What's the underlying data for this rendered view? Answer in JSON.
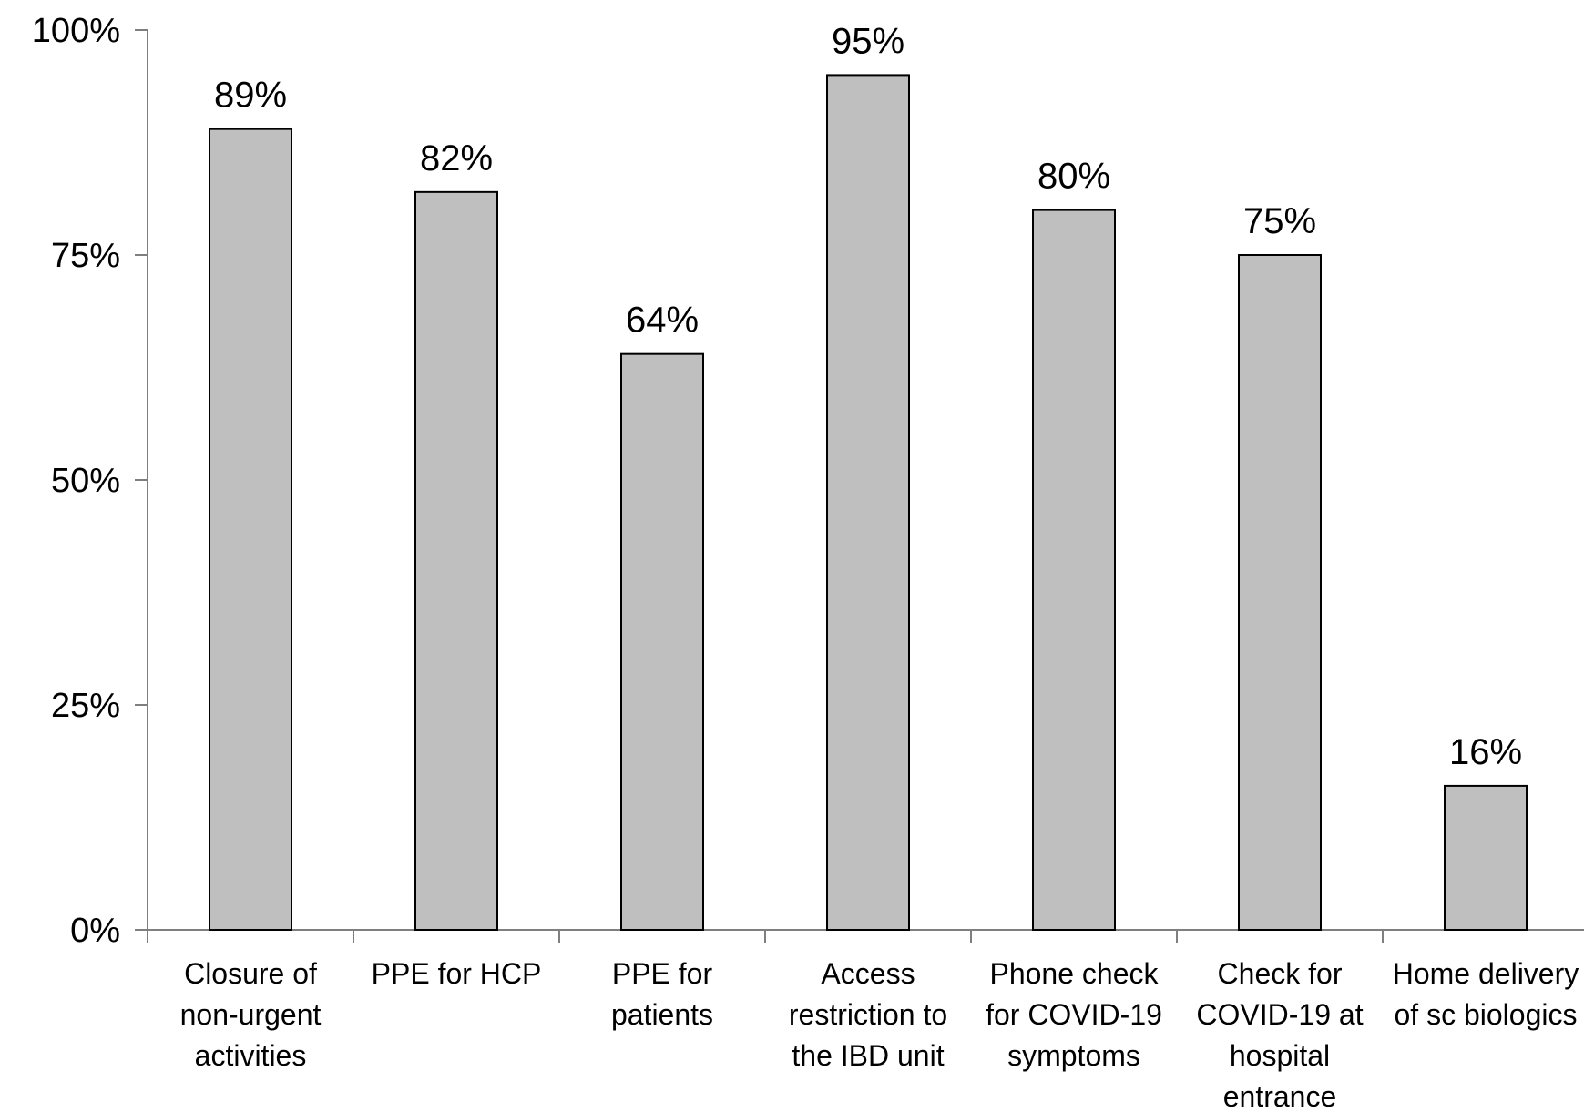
{
  "chart_data": {
    "type": "bar",
    "categories": [
      [
        "Closure of",
        "non-urgent",
        "activities"
      ],
      [
        "PPE for HCP"
      ],
      [
        "PPE for",
        "patients"
      ],
      [
        "Access",
        "restriction to",
        "the IBD unit"
      ],
      [
        "Phone check",
        "for COVID-19",
        "symptoms"
      ],
      [
        "Check for",
        "COVID-19 at",
        "hospital",
        "entrance"
      ],
      [
        "Home delivery",
        "of sc biologics"
      ]
    ],
    "values": [
      89,
      82,
      64,
      95,
      80,
      75,
      16
    ],
    "data_labels": [
      "89%",
      "82%",
      "64%",
      "95%",
      "80%",
      "75%",
      "16%"
    ],
    "yticks": [
      {
        "value": 0,
        "label": "0%"
      },
      {
        "value": 25,
        "label": "25%"
      },
      {
        "value": 50,
        "label": "50%"
      },
      {
        "value": 75,
        "label": "75%"
      },
      {
        "value": 100,
        "label": "100%"
      }
    ],
    "ylim": [
      0,
      100
    ],
    "grid": false,
    "legend": "none",
    "colors": {
      "bar_fill": "#bfbfbf",
      "bar_stroke": "#000000",
      "axis": "#7f7f7f"
    }
  }
}
